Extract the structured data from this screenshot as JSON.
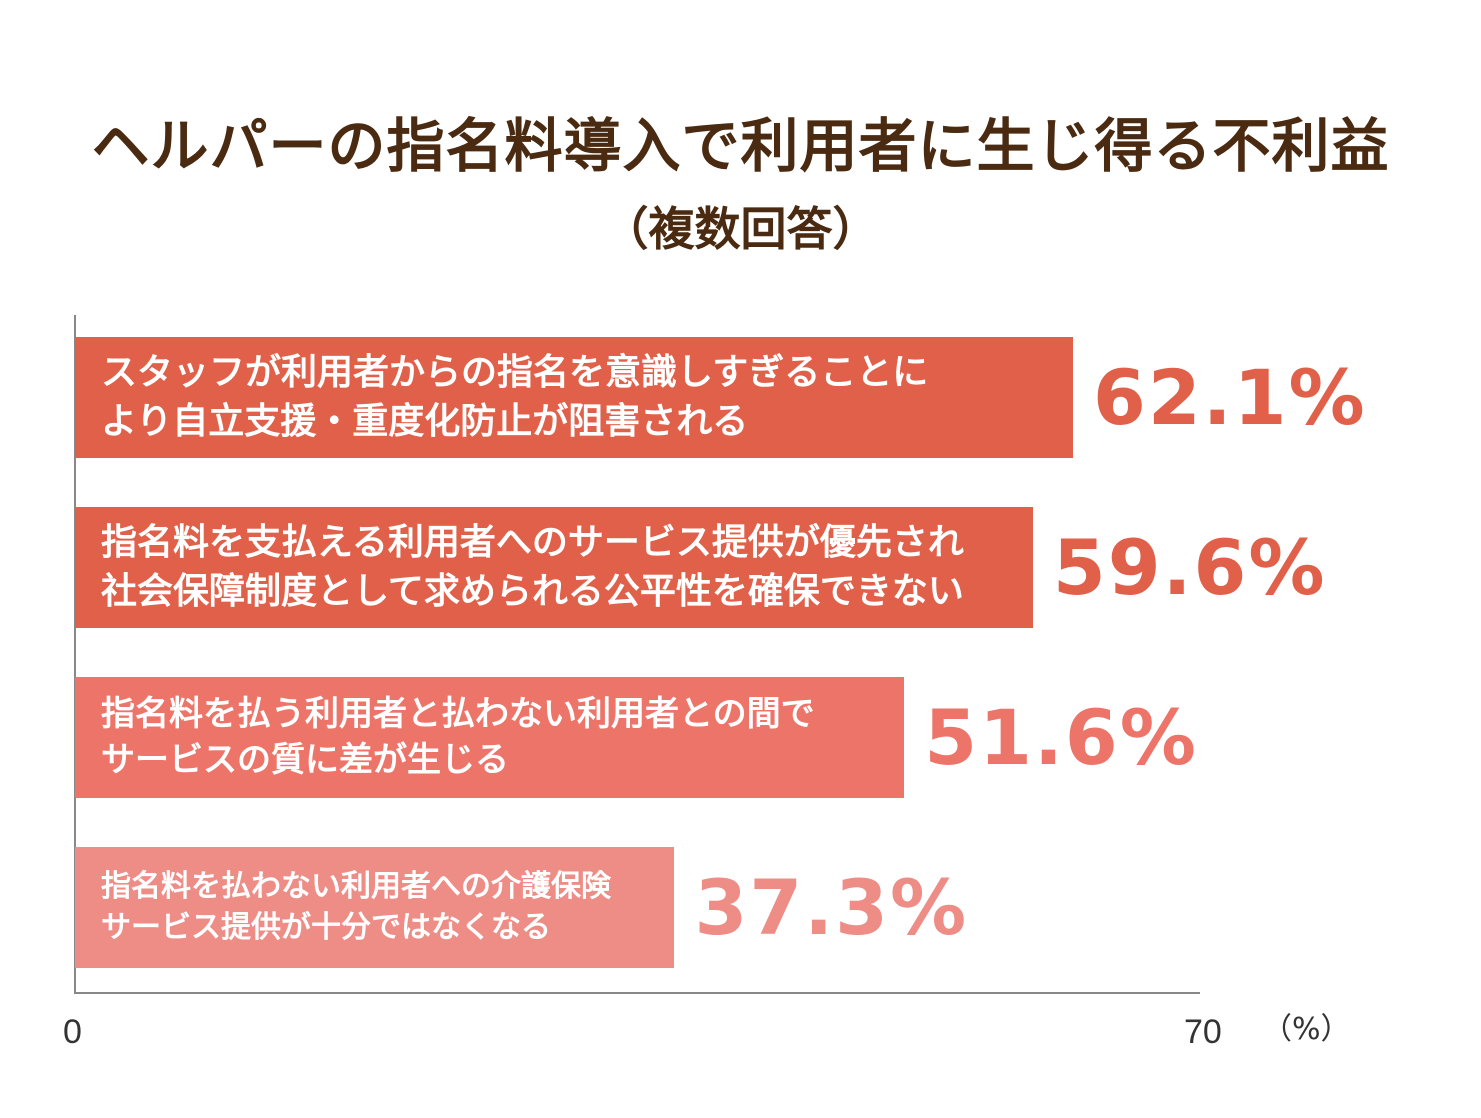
{
  "chart_data": {
    "type": "bar",
    "orientation": "horizontal",
    "title": "ヘルパーの指名料導入で利用者に生じ得る不利益",
    "subtitle": "（複数回答）",
    "categories": [
      "スタッフが利用者からの指名を意識しすぎることに\nより自立支援・重度化防止が阻害される",
      "指名料を支払える利用者へのサービス提供が優先され\n社会保障制度として求められる公平性を確保できない",
      "指名料を払う利用者と払わない利用者との間で\nサービスの質に差が生じる",
      "指名料を払わない利用者への介護保険\nサービス提供が十分ではなくなる"
    ],
    "values": [
      62.1,
      59.6,
      51.6,
      37.3
    ],
    "value_labels": [
      "62.1%",
      "59.6%",
      "51.6%",
      "37.3%"
    ],
    "bar_colors": [
      "#e0604a",
      "#e0604a",
      "#ed7468",
      "#ee8c86"
    ],
    "value_colors": [
      "#e0604a",
      "#e0604a",
      "#ed7468",
      "#ee8c86"
    ],
    "xlim": [
      0,
      70
    ],
    "x_ticks": [
      "0",
      "70"
    ],
    "unit": "（%）",
    "grid": false,
    "legend": "none"
  }
}
